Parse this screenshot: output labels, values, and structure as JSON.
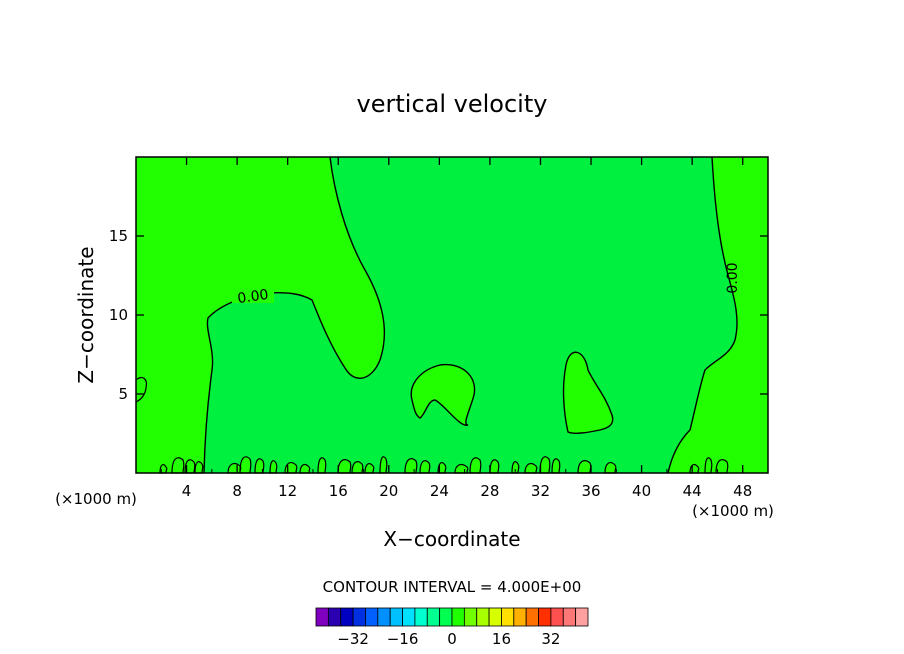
{
  "chart_data": {
    "type": "contour",
    "title": "vertical velocity",
    "xlabel": "X−coordinate",
    "ylabel": "Z−coordinate",
    "x_unit_left": "(×1000 m)",
    "x_unit_right": "(×1000 m)",
    "xlim": [
      0,
      50
    ],
    "ylim": [
      0,
      20
    ],
    "x_ticks": [
      4,
      8,
      12,
      16,
      20,
      24,
      28,
      32,
      36,
      40,
      44,
      48
    ],
    "y_ticks": [
      5,
      10,
      15
    ],
    "contour_labels": [
      "0.00",
      "0.00"
    ],
    "contour_interval_text": "CONTOUR INTERVAL = 4.000E+00",
    "colorbar": {
      "colors": [
        "#8000c0",
        "#2a00b0",
        "#0000c0",
        "#0030e0",
        "#0060ff",
        "#0090ff",
        "#00c0ff",
        "#00e0ff",
        "#00ffd0",
        "#00ff90",
        "#00ff50",
        "#20ff00",
        "#70ff00",
        "#a8ff00",
        "#d8ff00",
        "#ffe000",
        "#ffb000",
        "#ff7000",
        "#ff3000",
        "#ff5050",
        "#ff7878",
        "#ffa0a0"
      ],
      "tick_labels": [
        "−32",
        "−16",
        "0",
        "16",
        "32"
      ],
      "tick_values": [
        -32,
        -16,
        0,
        16,
        32
      ]
    },
    "regions": {
      "negative_fill": "#00f040",
      "positive_fill": "#22ff00"
    }
  }
}
